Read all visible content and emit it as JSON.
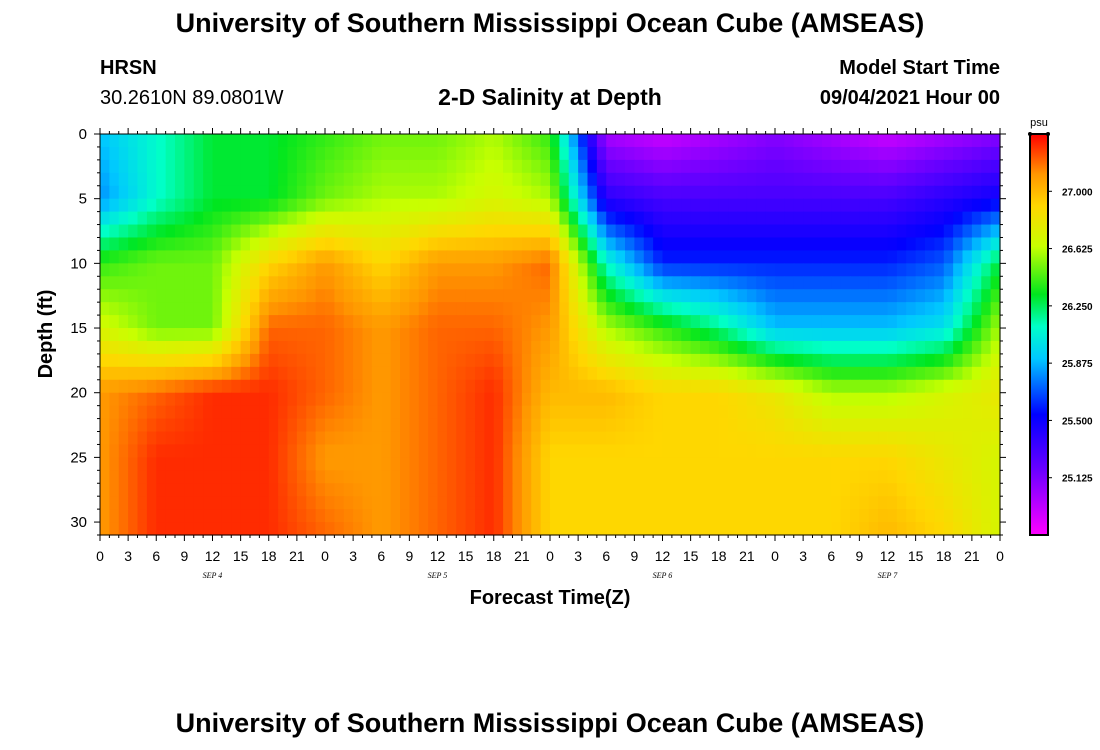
{
  "header": {
    "title": "University of Southern Mississippi Ocean Cube (AMSEAS)",
    "station": "HRSN",
    "coordinates": "30.2610N  89.0801W",
    "plot_title": "2-D Salinity at Depth",
    "model_start_label": "Model Start Time",
    "model_start_value": "09/04/2021 Hour 00"
  },
  "footer": {
    "title": "University of Southern Mississippi Ocean Cube (AMSEAS)"
  },
  "chart_data": {
    "type": "heatmap",
    "title": "2-D Salinity at Depth",
    "xlabel": "Forecast Time(Z)",
    "ylabel": "Depth (ft)",
    "x_range": [
      0,
      96
    ],
    "y_range": [
      0,
      31
    ],
    "x_ticks": [
      0,
      3,
      6,
      9,
      12,
      15,
      18,
      21,
      24,
      27,
      30,
      33,
      36,
      39,
      42,
      45,
      48,
      51,
      54,
      57,
      60,
      63,
      66,
      69,
      72,
      75,
      78,
      81,
      84,
      87,
      90,
      93,
      96
    ],
    "x_tick_labels": [
      "0",
      "3",
      "6",
      "9",
      "12",
      "15",
      "18",
      "21",
      "0",
      "3",
      "6",
      "9",
      "12",
      "15",
      "18",
      "21",
      "0",
      "3",
      "6",
      "9",
      "12",
      "15",
      "18",
      "21",
      "0",
      "3",
      "6",
      "9",
      "12",
      "15",
      "18",
      "21",
      "0"
    ],
    "day_labels": [
      {
        "label": "SEP 4",
        "hour": 12
      },
      {
        "label": "SEP 5",
        "hour": 36
      },
      {
        "label": "SEP 6",
        "hour": 60
      },
      {
        "label": "SEP 7",
        "hour": 84
      }
    ],
    "y_ticks": [
      0,
      5,
      10,
      15,
      20,
      25,
      30
    ],
    "y_tick_labels": [
      "0",
      "5",
      "10",
      "15",
      "20",
      "25",
      "30"
    ],
    "colorbar": {
      "unit": "psu",
      "range": [
        24.75,
        27.375
      ],
      "ticks": [
        25.125,
        25.5,
        25.875,
        26.25,
        26.625,
        27.0
      ],
      "tick_labels": [
        "25.125",
        "25.500",
        "25.875",
        "26.250",
        "26.625",
        "27.000"
      ]
    },
    "salinity_grid": {
      "depths_ft": [
        0,
        5,
        10,
        15,
        20,
        25,
        31
      ],
      "hours": [
        0,
        6,
        12,
        18,
        24,
        30,
        36,
        42,
        48,
        54,
        60,
        66,
        72,
        78,
        84,
        90,
        96
      ],
      "values": [
        [
          25.9,
          26.1,
          26.3,
          26.3,
          26.4,
          26.5,
          26.5,
          26.6,
          26.4,
          25.0,
          24.9,
          25.0,
          25.1,
          25.0,
          24.9,
          25.0,
          25.1
        ],
        [
          25.8,
          26.1,
          26.3,
          26.3,
          26.5,
          26.6,
          26.6,
          26.7,
          26.6,
          25.4,
          25.3,
          25.3,
          25.3,
          25.3,
          25.3,
          25.4,
          25.5
        ],
        [
          26.4,
          26.5,
          26.5,
          26.9,
          27.1,
          26.9,
          27.1,
          27.1,
          27.2,
          26.1,
          25.6,
          25.6,
          25.6,
          25.6,
          25.6,
          25.7,
          26.3
        ],
        [
          26.7,
          26.5,
          26.5,
          27.2,
          27.2,
          27.1,
          27.2,
          27.2,
          27.1,
          26.6,
          26.4,
          26.2,
          25.9,
          25.9,
          25.9,
          26.0,
          26.6
        ],
        [
          27.1,
          27.2,
          27.3,
          27.3,
          27.2,
          27.1,
          27.2,
          27.3,
          27.0,
          27.0,
          26.9,
          26.9,
          26.8,
          26.6,
          26.6,
          26.7,
          26.8
        ],
        [
          27.1,
          27.3,
          27.3,
          27.3,
          27.1,
          27.1,
          27.2,
          27.3,
          26.9,
          26.9,
          26.9,
          26.9,
          26.9,
          26.9,
          26.9,
          26.8,
          26.7
        ],
        [
          27.1,
          27.3,
          27.3,
          27.3,
          27.2,
          27.1,
          27.2,
          27.3,
          26.9,
          26.9,
          26.9,
          26.9,
          26.9,
          26.9,
          27.0,
          26.9,
          26.7
        ]
      ]
    }
  }
}
